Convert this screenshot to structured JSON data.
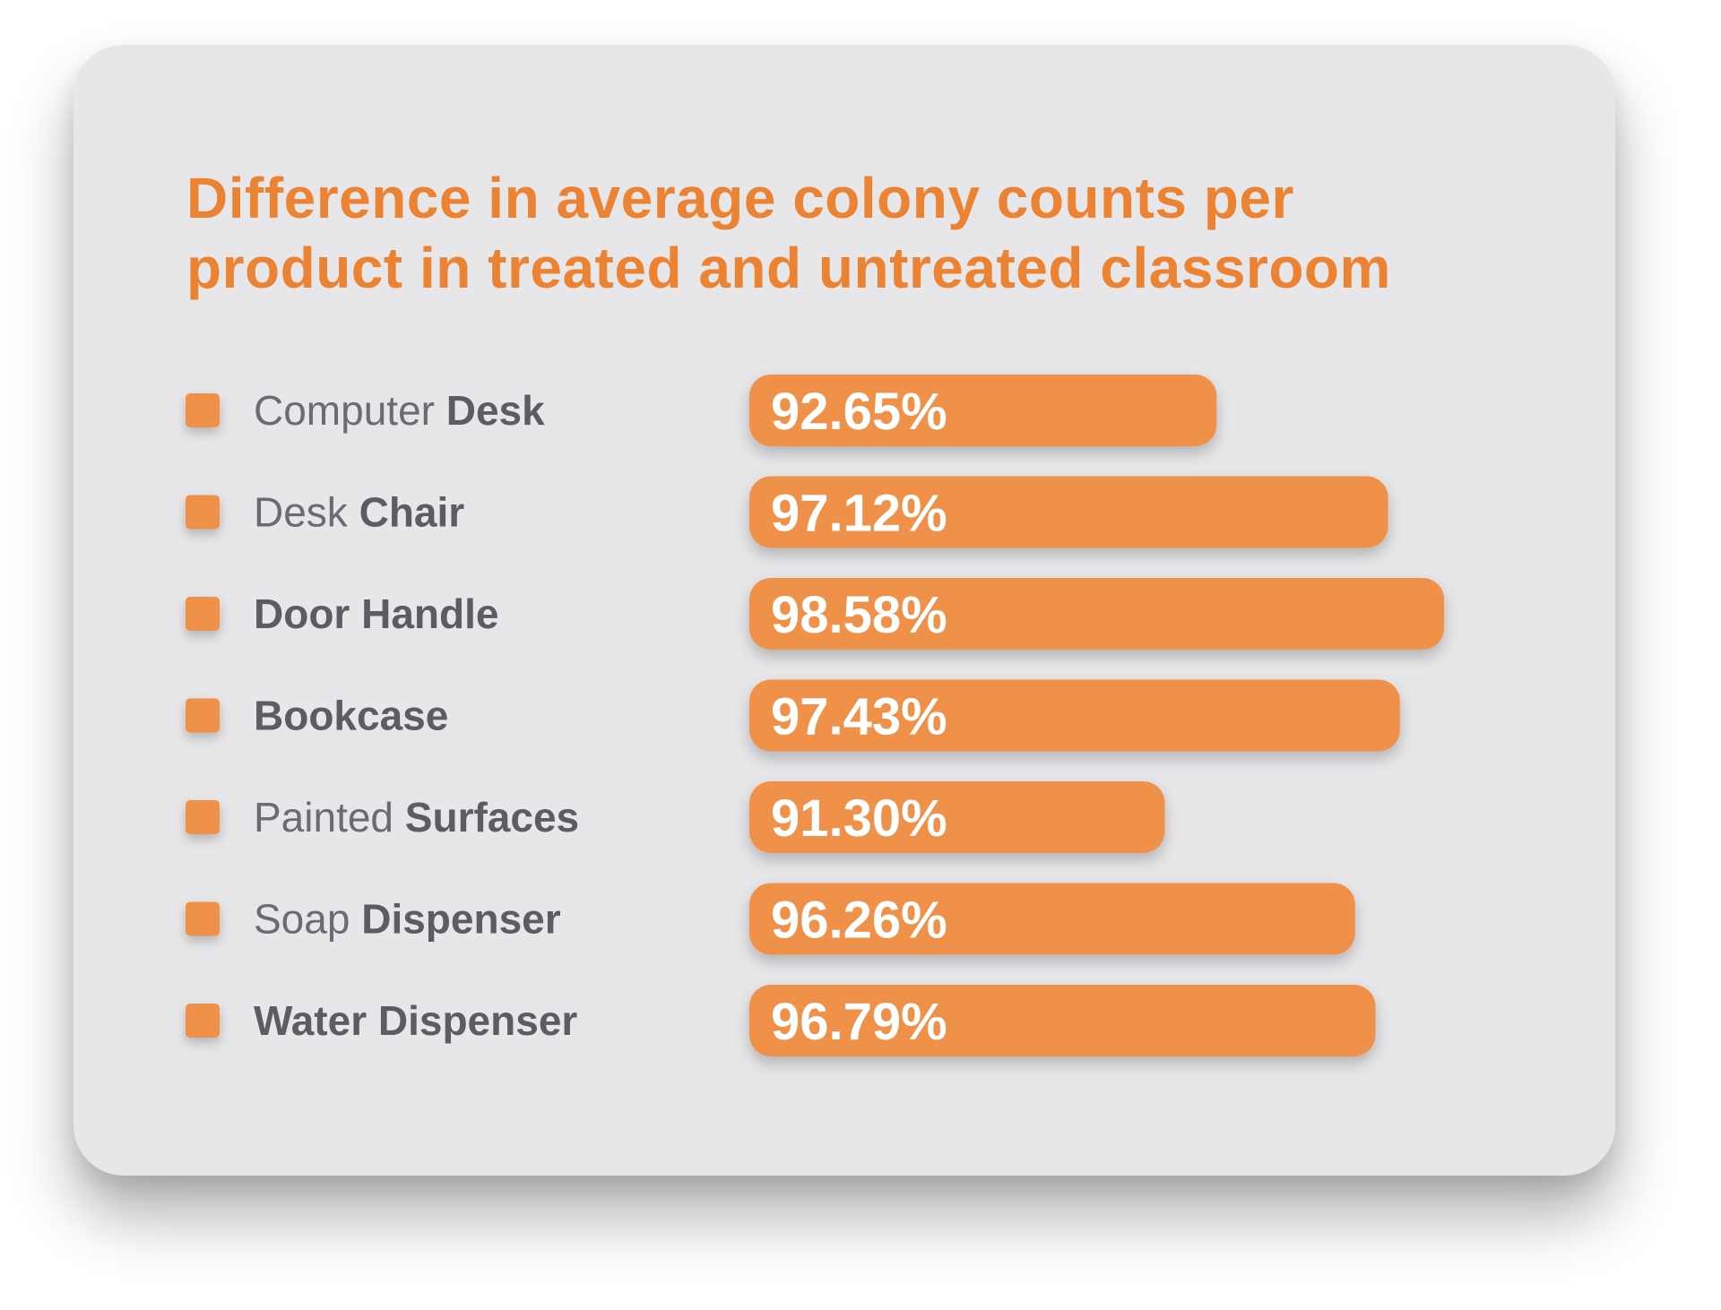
{
  "title_lines": [
    "Difference in average colony counts per",
    "product in treated and untreated classroom"
  ],
  "colors": {
    "accent": "#ec8332",
    "bar": "#f0914a",
    "card": "#e7e6e9",
    "label": "#6d6b70"
  },
  "chart_data": {
    "type": "bar",
    "orientation": "horizontal",
    "title": "Difference in average colony counts per product in treated and untreated classroom",
    "categories": [
      "Computer Desk",
      "Desk Chair",
      "Door Handle",
      "Bookcase",
      "Painted Surfaces",
      "Soap Dispenser",
      "Water Dispenser"
    ],
    "category_parts": [
      [
        {
          "text": "Computer ",
          "bold": false
        },
        {
          "text": "Desk",
          "bold": true
        }
      ],
      [
        {
          "text": "Desk ",
          "bold": false
        },
        {
          "text": "Chair",
          "bold": true
        }
      ],
      [
        {
          "text": "Door Handle",
          "bold": true
        }
      ],
      [
        {
          "text": "Bookcase",
          "bold": true
        }
      ],
      [
        {
          "text": "Painted ",
          "bold": false
        },
        {
          "text": "Surfaces",
          "bold": true
        }
      ],
      [
        {
          "text": "Soap ",
          "bold": false
        },
        {
          "text": "Dispenser",
          "bold": true
        }
      ],
      [
        {
          "text": "Water Dispenser",
          "bold": true
        }
      ]
    ],
    "values": [
      92.65,
      97.12,
      98.58,
      97.43,
      91.3,
      96.26,
      96.79
    ],
    "value_labels": [
      "92.65%",
      "97.12%",
      "98.58%",
      "97.43%",
      "91.30%",
      "96.26%",
      "96.79%"
    ],
    "xlabel": "",
    "ylabel": "",
    "grid": false,
    "legend": "left, square markers beside each category"
  }
}
